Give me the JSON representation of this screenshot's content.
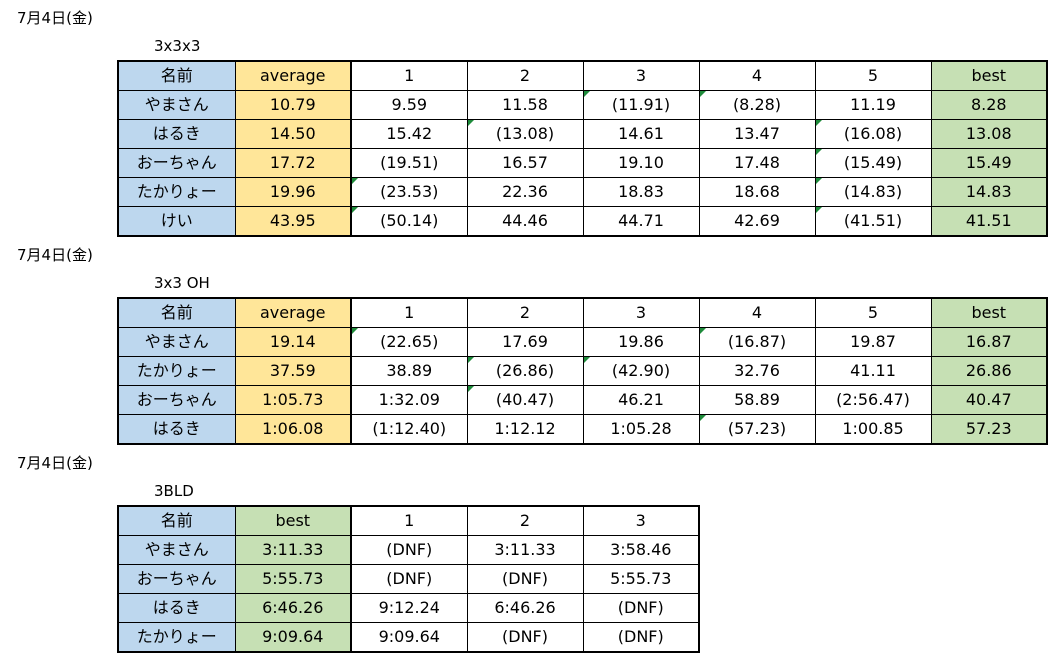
{
  "sections": [
    {
      "date": "7月4日(金)",
      "event": "3x3x3",
      "headers": [
        "名前",
        "average",
        "1",
        "2",
        "3",
        "4",
        "5",
        "best"
      ],
      "rows": [
        {
          "cells": [
            "やまさん",
            "10.79",
            "9.59",
            "11.58",
            "(11.91)",
            "(8.28)",
            "11.19",
            "8.28"
          ]
        },
        {
          "cells": [
            "はるき",
            "14.50",
            "15.42",
            "(13.08)",
            "14.61",
            "13.47",
            "(16.08)",
            "13.08"
          ]
        },
        {
          "cells": [
            "おーちゃん",
            "17.72",
            "(19.51)",
            "16.57",
            "19.10",
            "17.48",
            "(15.49)",
            "15.49"
          ]
        },
        {
          "cells": [
            "たかりょー",
            "19.96",
            "(23.53)",
            "22.36",
            "18.83",
            "18.68",
            "(14.83)",
            "14.83"
          ]
        },
        {
          "cells": [
            "けい",
            "43.95",
            "(50.14)",
            "44.46",
            "44.71",
            "42.69",
            "(41.51)",
            "41.51"
          ]
        }
      ]
    },
    {
      "date": "7月4日(金)",
      "event": "3x3 OH",
      "headers": [
        "名前",
        "average",
        "1",
        "2",
        "3",
        "4",
        "5",
        "best"
      ],
      "rows": [
        {
          "cells": [
            "やまさん",
            "19.14",
            "(22.65)",
            "17.69",
            "19.86",
            "(16.87)",
            "19.87",
            "16.87"
          ]
        },
        {
          "cells": [
            "たかりょー",
            "37.59",
            "38.89",
            "(26.86)",
            "(42.90)",
            "32.76",
            "41.11",
            "26.86"
          ]
        },
        {
          "cells": [
            "おーちゃん",
            "1:05.73",
            "1:32.09",
            "(40.47)",
            "46.21",
            "58.89",
            "(2:56.47)",
            "40.47"
          ]
        },
        {
          "cells": [
            "はるき",
            "1:06.08",
            "(1:12.40)",
            "1:12.12",
            "1:05.28",
            "(57.23)",
            "1:00.85",
            "57.23"
          ]
        }
      ]
    },
    {
      "date": "7月4日(金)",
      "event": "3BLD",
      "headers": [
        "名前",
        "best",
        "1",
        "2",
        "3"
      ],
      "rows": [
        {
          "cells": [
            "やまさん",
            "3:11.33",
            "(DNF)",
            "3:11.33",
            "3:58.46"
          ]
        },
        {
          "cells": [
            "おーちゃん",
            "5:55.73",
            "(DNF)",
            "(DNF)",
            "5:55.73"
          ]
        },
        {
          "cells": [
            "はるき",
            "6:46.26",
            "9:12.24",
            "6:46.26",
            "(DNF)"
          ]
        },
        {
          "cells": [
            "たかりょー",
            "9:09.64",
            "9:09.64",
            "(DNF)",
            "(DNF)"
          ]
        }
      ]
    }
  ],
  "colors": {
    "name_bg": "#bdd7ee",
    "average_bg": "#ffe699",
    "best_bg": "#c6e0b4",
    "comment_flag": "#1e8b3b"
  }
}
